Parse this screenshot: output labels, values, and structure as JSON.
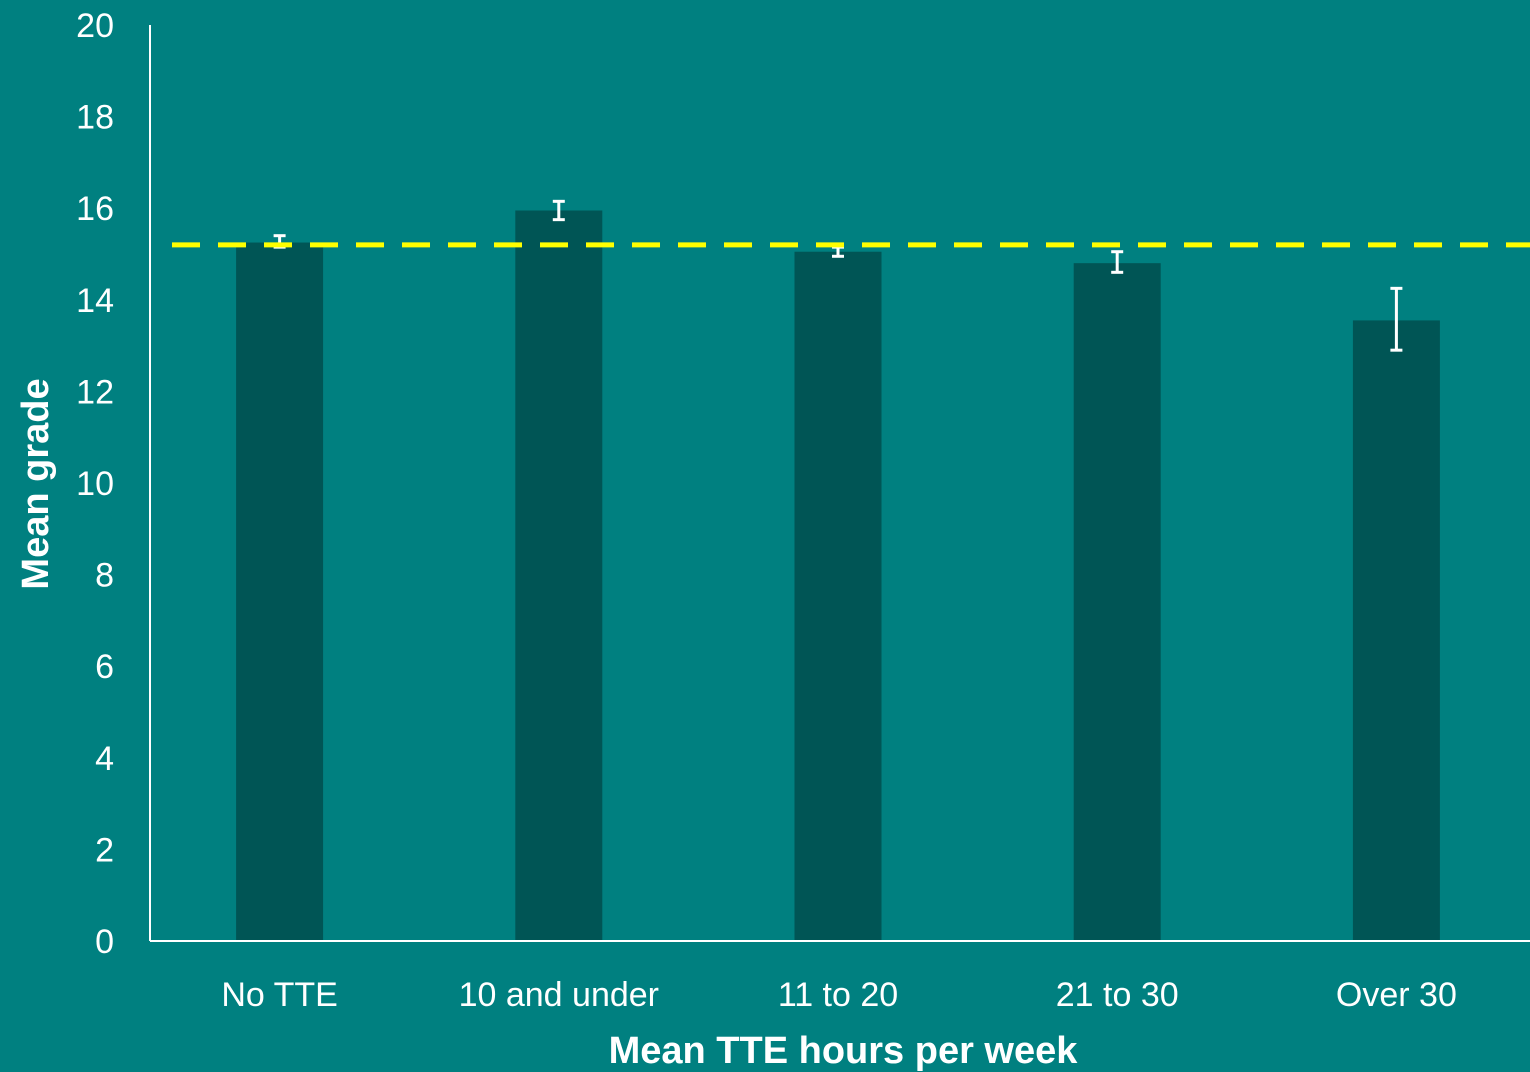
{
  "chart_data": {
    "type": "bar",
    "title": "",
    "xlabel": "Mean TTE hours per week",
    "ylabel": "Mean grade",
    "categories": [
      "No TTE",
      "10 and under",
      "11 to 20",
      "21 to 30",
      "Over 30"
    ],
    "values": [
      15.25,
      15.95,
      15.05,
      14.8,
      13.55
    ],
    "error_bars": [
      {
        "low": 15.15,
        "high": 15.4
      },
      {
        "low": 15.75,
        "high": 16.15
      },
      {
        "low": 14.95,
        "high": 15.15
      },
      {
        "low": 14.6,
        "high": 15.05
      },
      {
        "low": 12.9,
        "high": 14.25
      }
    ],
    "reference_line": {
      "value": 15.2,
      "style": "dashed",
      "color": "#ffff00"
    },
    "ylim": [
      0,
      20
    ],
    "yticks": [
      "0",
      "2",
      "4",
      "6",
      "8",
      "10",
      "12",
      "14",
      "16",
      "18",
      "20"
    ],
    "grid": false,
    "legend": "none",
    "colors": {
      "background": "#008080",
      "bar": "#005555",
      "axis": "#ffffff",
      "error_bar": "#ffffff"
    }
  }
}
